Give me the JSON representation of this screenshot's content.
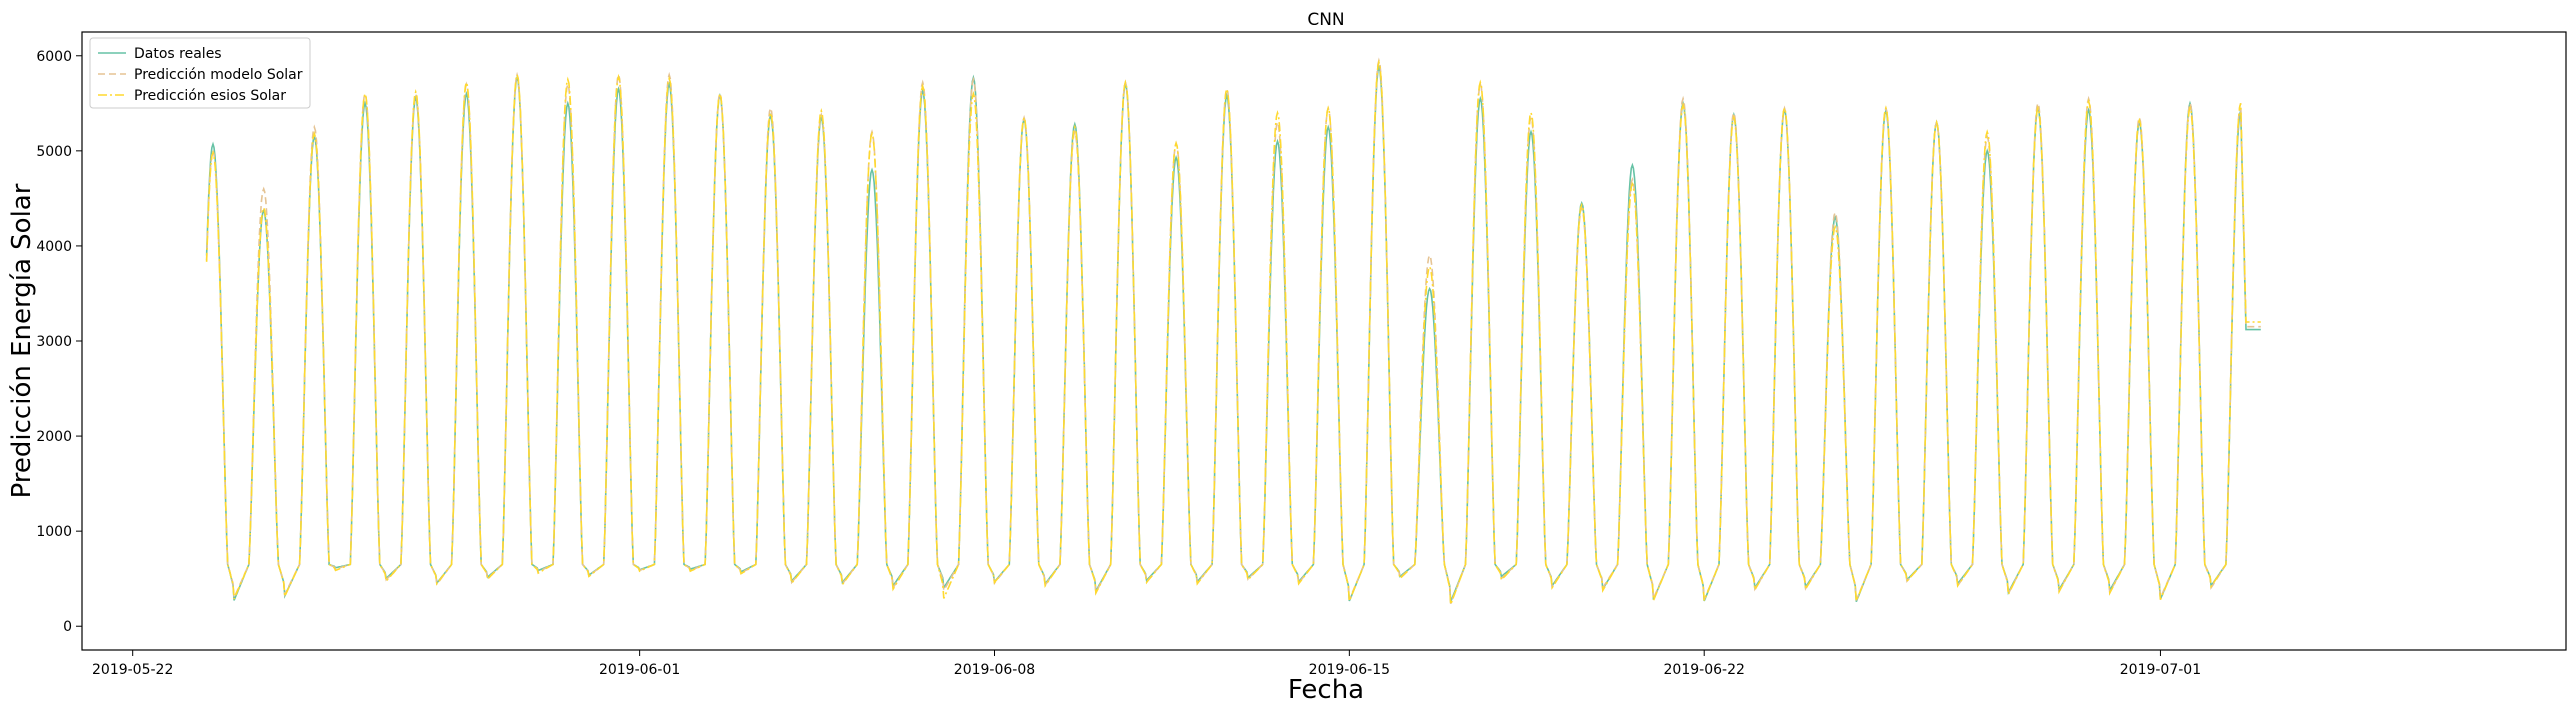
{
  "chart_data": {
    "type": "line",
    "title": "CNN",
    "xlabel": "Fecha",
    "ylabel": "Predicción Energía Solar",
    "x_range": [
      "2019-05-21",
      "2019-07-09"
    ],
    "ylim": [
      -250,
      6250
    ],
    "yticks": [
      0,
      1000,
      2000,
      3000,
      4000,
      5000,
      6000
    ],
    "xticks": [
      "2019-05-22",
      "2019-06-01",
      "2019-06-08",
      "2019-06-15",
      "2019-06-22",
      "2019-07-01"
    ],
    "series_start": "2019-05-23T11:00",
    "series_end": "2019-07-03T11:00",
    "grid": false,
    "legend_position": "upper left",
    "series": [
      {
        "name": "Datos reales",
        "style": "solid",
        "color": "#66c2a5",
        "daily_peaks": [
          5070,
          4370,
          5150,
          5500,
          5560,
          5600,
          5770,
          5500,
          5650,
          5700,
          5580,
          5370,
          5350,
          4800,
          5630,
          5770,
          5330,
          5280,
          5700,
          4930,
          5580,
          5100,
          5250,
          5880,
          3550,
          5550,
          5200,
          4450,
          4850,
          5500,
          5380,
          5430,
          4300,
          5420,
          5300,
          5000,
          5450,
          5430,
          5300,
          5500,
          5420
        ],
        "daily_mins": [
          110,
          180,
          600,
          440,
          370,
          460,
          560,
          490,
          570,
          580,
          540,
          400,
          380,
          330,
          300,
          390,
          360,
          250,
          410,
          390,
          450,
          390,
          100,
          470,
          90,
          470,
          330,
          280,
          120,
          100,
          300,
          310,
          90,
          420,
          360,
          230,
          270,
          260,
          130,
          330,
          3120
        ]
      },
      {
        "name": "Predicción modelo Solar",
        "style": "dashed",
        "color": "#e5c494",
        "daily_peaks": [
          5000,
          4600,
          5250,
          5600,
          5600,
          5700,
          5800,
          5700,
          5800,
          5800,
          5600,
          5450,
          5380,
          5200,
          5720,
          5750,
          5350,
          5200,
          5720,
          5080,
          5650,
          5300,
          5450,
          5950,
          3900,
          5700,
          5350,
          4400,
          4700,
          5550,
          5400,
          5450,
          4350,
          5450,
          5300,
          5150,
          5500,
          5550,
          5350,
          5500,
          5500
        ],
        "daily_mins": [
          150,
          200,
          580,
          420,
          350,
          440,
          540,
          480,
          560,
          560,
          520,
          380,
          360,
          300,
          260,
          370,
          340,
          230,
          390,
          370,
          430,
          370,
          120,
          450,
          60,
          440,
          310,
          300,
          140,
          120,
          280,
          290,
          110,
          400,
          330,
          210,
          250,
          230,
          150,
          300,
          3150
        ]
      },
      {
        "name": "Predicción esios Solar",
        "style": "dashdot",
        "color": "#ffd92f",
        "daily_peaks": [
          4980,
          4400,
          5180,
          5600,
          5620,
          5720,
          5800,
          5750,
          5780,
          5760,
          5600,
          5400,
          5420,
          5180,
          5680,
          5600,
          5350,
          5250,
          5720,
          5080,
          5650,
          5400,
          5450,
          5930,
          3780,
          5720,
          5400,
          4430,
          4650,
          5480,
          5350,
          5450,
          4200,
          5450,
          5300,
          5200,
          5450,
          5520,
          5320,
          5450,
          5500
        ],
        "daily_mins": [
          130,
          170,
          560,
          400,
          360,
          430,
          520,
          470,
          550,
          550,
          510,
          370,
          350,
          280,
          140,
          380,
          330,
          220,
          380,
          360,
          420,
          360,
          100,
          440,
          50,
          420,
          300,
          260,
          110,
          110,
          270,
          280,
          100,
          400,
          330,
          200,
          240,
          220,
          120,
          320,
          3200
        ]
      }
    ]
  }
}
